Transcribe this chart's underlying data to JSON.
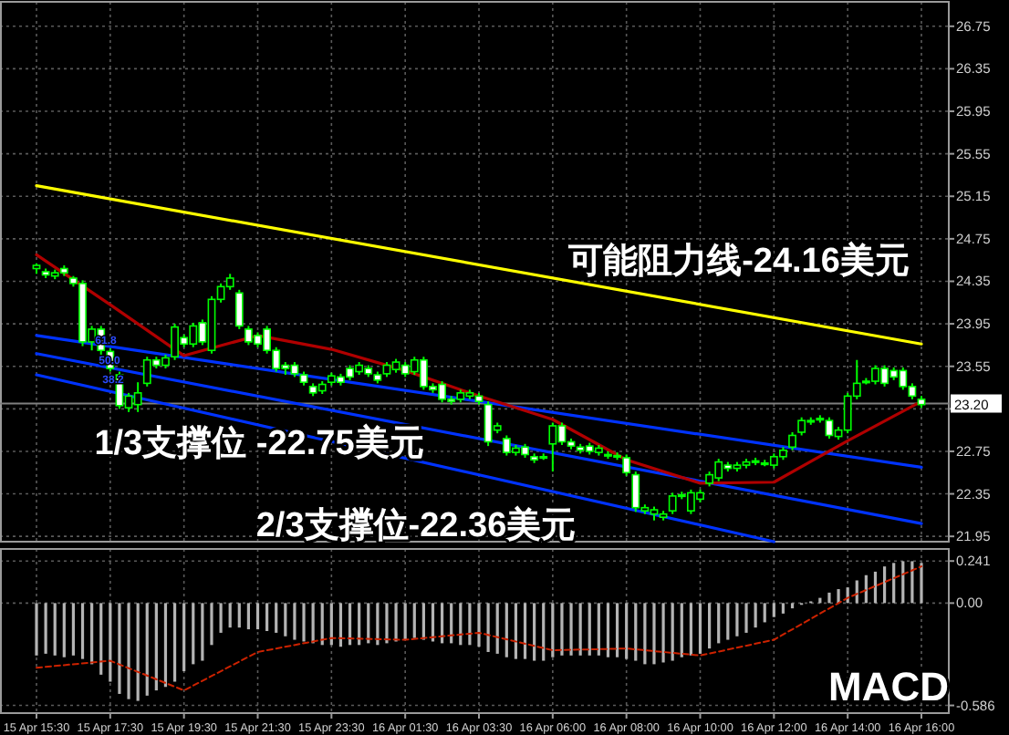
{
  "chart_data": [
    {
      "type": "candlestick",
      "tick_labels": "y",
      "grid": true,
      "categories": [
        "15 Apr 15:30",
        null,
        null,
        null,
        null,
        null,
        null,
        null,
        "15 Apr 17:30",
        null,
        null,
        null,
        null,
        null,
        null,
        null,
        "15 Apr 19:30",
        null,
        null,
        null,
        null,
        null,
        null,
        null,
        "15 Apr 21:30",
        null,
        null,
        null,
        null,
        null,
        null,
        null,
        "15 Apr 23:30",
        null,
        null,
        null,
        null,
        null,
        null,
        null,
        "16 Apr 01:30",
        null,
        null,
        null,
        null,
        null,
        null,
        null,
        "16 Apr 03:30",
        null,
        null,
        null,
        null,
        null,
        null,
        null,
        "16 Apr 06:00",
        null,
        null,
        null,
        null,
        null,
        null,
        null,
        "16 Apr 08:00",
        null,
        null,
        null,
        null,
        null,
        null,
        null,
        "16 Apr 10:00",
        null,
        null,
        null,
        null,
        null,
        null,
        null,
        "16 Apr 12:00",
        null,
        null,
        null,
        null,
        null,
        null,
        null,
        "16 Apr 14:00",
        null,
        null,
        null,
        null,
        null,
        null,
        null,
        "16 Apr 16:00"
      ],
      "ylim": [
        21.9,
        26.98
      ],
      "yticks": [
        21.95,
        22.35,
        22.75,
        {
          "value": 23.15,
          "label": null
        },
        23.55,
        23.95,
        24.35,
        24.75,
        25.15,
        25.55,
        25.95,
        26.35,
        26.75
      ],
      "series": [
        {
          "type": "line",
          "color": "#ffff00",
          "x": [
            "15 Apr 15:30",
            "16 Apr 16:00"
          ],
          "values": [
            25.25,
            23.76
          ]
        },
        {
          "type": "line",
          "color": "#0033ff",
          "x": [
            "15 Apr 15:30",
            "16 Apr 16:00"
          ],
          "values": [
            23.84,
            22.6
          ]
        },
        {
          "type": "line",
          "color": "#0033ff",
          "x": [
            "15 Apr 15:30",
            "16 Apr 16:00"
          ],
          "values": [
            23.67,
            22.07
          ]
        },
        {
          "type": "line",
          "color": "#0033ff",
          "x": [
            "15 Apr 15:30",
            "16 Apr 12:00"
          ],
          "values": [
            23.47,
            21.9
          ]
        },
        {
          "type": "line",
          "color": "#b00000",
          "x": [
            "15 Apr 15:30",
            "15 Apr 17:30",
            "15 Apr 19:30",
            "15 Apr 21:30",
            "15 Apr 23:30",
            "16 Apr 01:30",
            "16 Apr 03:30",
            "16 Apr 06:00",
            "16 Apr 08:00",
            "16 Apr 10:00",
            "16 Apr 12:00",
            "16 Apr 14:00",
            "16 Apr 16:00"
          ],
          "values": [
            24.6,
            24.13,
            23.65,
            23.84,
            23.71,
            23.51,
            23.27,
            23.05,
            22.67,
            22.45,
            22.46,
            22.85,
            23.22
          ]
        },
        {
          "color": "#00ff00",
          "ohlc": [
            [
              24.47,
              24.52,
              24.42,
              24.5
            ],
            [
              24.44,
              24.47,
              24.38,
              24.41
            ],
            [
              24.4,
              24.46,
              24.37,
              24.43
            ],
            [
              24.47,
              24.5,
              24.4,
              24.43
            ],
            [
              24.38,
              24.4,
              24.3,
              24.33
            ],
            [
              24.33,
              24.36,
              23.74,
              23.78
            ],
            [
              23.78,
              23.93,
              23.7,
              23.9
            ],
            [
              23.9,
              23.93,
              23.66,
              23.7
            ],
            [
              23.69,
              23.72,
              23.5,
              23.53
            ],
            [
              23.47,
              23.5,
              23.15,
              23.18
            ],
            [
              23.16,
              23.3,
              23.12,
              23.27
            ],
            [
              23.19,
              23.4,
              23.12,
              23.3
            ],
            [
              23.39,
              23.64,
              23.36,
              23.61
            ],
            [
              23.61,
              23.64,
              23.53,
              23.56
            ],
            [
              23.56,
              23.66,
              23.53,
              23.63
            ],
            [
              23.64,
              23.95,
              23.61,
              23.92
            ],
            [
              23.82,
              23.85,
              23.73,
              23.76
            ],
            [
              23.76,
              23.96,
              23.73,
              23.93
            ],
            [
              23.96,
              23.99,
              23.75,
              23.78
            ],
            [
              23.7,
              24.21,
              23.67,
              24.18
            ],
            [
              24.18,
              24.33,
              24.15,
              24.3
            ],
            [
              24.3,
              24.42,
              24.27,
              24.38
            ],
            [
              24.24,
              24.27,
              23.9,
              23.93
            ],
            [
              23.9,
              23.93,
              23.75,
              23.78
            ],
            [
              23.84,
              23.87,
              23.73,
              23.76
            ],
            [
              23.9,
              23.93,
              23.67,
              23.7
            ],
            [
              23.7,
              23.73,
              23.5,
              23.53
            ],
            [
              23.56,
              23.59,
              23.47,
              23.53
            ],
            [
              23.56,
              23.59,
              23.45,
              23.48
            ],
            [
              23.47,
              23.5,
              23.37,
              23.4
            ],
            [
              23.36,
              23.39,
              23.27,
              23.3
            ],
            [
              23.32,
              23.41,
              23.29,
              23.38
            ],
            [
              23.4,
              23.49,
              23.37,
              23.46
            ],
            [
              23.45,
              23.48,
              23.37,
              23.4
            ],
            [
              23.53,
              23.56,
              23.42,
              23.45
            ],
            [
              23.5,
              23.59,
              23.47,
              23.56
            ],
            [
              23.53,
              23.56,
              23.45,
              23.48
            ],
            [
              23.47,
              23.5,
              23.39,
              23.42
            ],
            [
              23.48,
              23.59,
              23.45,
              23.56
            ],
            [
              23.52,
              23.62,
              23.49,
              23.59
            ],
            [
              23.56,
              23.59,
              23.45,
              23.48
            ],
            [
              23.5,
              23.64,
              23.47,
              23.61
            ],
            [
              23.61,
              23.64,
              23.33,
              23.36
            ],
            [
              23.36,
              23.39,
              23.3,
              23.33
            ],
            [
              23.38,
              23.41,
              23.21,
              23.24
            ],
            [
              23.24,
              23.27,
              23.19,
              23.22
            ],
            [
              23.24,
              23.33,
              23.21,
              23.3
            ],
            [
              23.27,
              23.33,
              23.24,
              23.3
            ],
            [
              23.27,
              23.3,
              23.19,
              23.22
            ],
            [
              23.19,
              23.22,
              22.8,
              22.84
            ],
            [
              22.95,
              23.02,
              22.92,
              22.99
            ],
            [
              22.87,
              22.9,
              22.71,
              22.74
            ],
            [
              22.74,
              22.81,
              22.71,
              22.78
            ],
            [
              22.79,
              22.82,
              22.69,
              22.72
            ],
            [
              22.7,
              22.73,
              22.64,
              22.67
            ],
            [
              22.7,
              22.73,
              22.67,
              22.7
            ],
            [
              22.82,
              23.02,
              22.56,
              22.99
            ],
            [
              22.99,
              23.02,
              22.81,
              22.84
            ],
            [
              22.84,
              22.87,
              22.77,
              22.8
            ],
            [
              22.79,
              22.82,
              22.73,
              22.76
            ],
            [
              22.8,
              22.83,
              22.72,
              22.75
            ],
            [
              22.74,
              22.81,
              22.71,
              22.78
            ],
            [
              22.72,
              22.75,
              22.68,
              22.71
            ],
            [
              22.7,
              22.74,
              22.67,
              22.71
            ],
            [
              22.69,
              22.72,
              22.52,
              22.55
            ],
            [
              22.53,
              22.56,
              22.18,
              22.22
            ],
            [
              22.19,
              22.25,
              22.16,
              22.22
            ],
            [
              22.16,
              22.23,
              22.1,
              22.2
            ],
            [
              22.13,
              22.19,
              22.1,
              22.16
            ],
            [
              22.19,
              22.36,
              22.16,
              22.33
            ],
            [
              22.33,
              22.37,
              22.3,
              22.34
            ],
            [
              22.19,
              22.39,
              22.16,
              22.36
            ],
            [
              22.3,
              22.39,
              22.27,
              22.36
            ],
            [
              22.45,
              22.56,
              22.42,
              22.53
            ],
            [
              22.5,
              22.68,
              22.47,
              22.65
            ],
            [
              22.62,
              22.65,
              22.56,
              22.59
            ],
            [
              22.59,
              22.65,
              22.56,
              22.62
            ],
            [
              22.62,
              22.68,
              22.59,
              22.65
            ],
            [
              22.65,
              22.69,
              22.62,
              22.66
            ],
            [
              22.64,
              22.67,
              22.61,
              22.64
            ],
            [
              22.62,
              22.73,
              22.59,
              22.7
            ],
            [
              22.7,
              22.79,
              22.67,
              22.76
            ],
            [
              22.79,
              22.93,
              22.76,
              22.9
            ],
            [
              22.93,
              23.07,
              22.9,
              23.04
            ],
            [
              23.03,
              23.07,
              23.0,
              23.04
            ],
            [
              23.06,
              23.09,
              23.02,
              23.05
            ],
            [
              23.04,
              23.07,
              22.87,
              22.9
            ],
            [
              22.89,
              22.98,
              22.86,
              22.95
            ],
            [
              22.95,
              23.3,
              22.92,
              23.27
            ],
            [
              23.27,
              23.61,
              23.24,
              23.39
            ],
            [
              23.41,
              23.44,
              23.38,
              23.41
            ],
            [
              23.41,
              23.56,
              23.38,
              23.53
            ],
            [
              23.53,
              23.56,
              23.36,
              23.39
            ],
            [
              23.51,
              23.54,
              23.42,
              23.45
            ],
            [
              23.51,
              23.54,
              23.33,
              23.36
            ],
            [
              23.36,
              23.39,
              23.24,
              23.27
            ],
            [
              23.24,
              23.27,
              23.16,
              23.19
            ]
          ]
        }
      ],
      "ref_lines": [
        {
          "axis": "y",
          "value": 23.2,
          "label": "23.20",
          "color": "#808080"
        }
      ],
      "annotations": [
        "可能阻力线-24.16美元",
        "1/3支撑位 -22.75美元",
        "2/3支撑位-22.36美元",
        {
          "text": "61.8",
          "y": 23.8
        },
        {
          "text": "50.0",
          "y": 23.61
        },
        {
          "text": "38.2",
          "y": 23.43
        }
      ]
    },
    {
      "type": "bar",
      "grid": true,
      "categories": [
        "15 Apr 15:30",
        null,
        null,
        null,
        null,
        null,
        null,
        null,
        "15 Apr 17:30",
        null,
        null,
        null,
        null,
        null,
        null,
        null,
        "15 Apr 19:30",
        null,
        null,
        null,
        null,
        null,
        null,
        null,
        "15 Apr 21:30",
        null,
        null,
        null,
        null,
        null,
        null,
        null,
        "15 Apr 23:30",
        null,
        null,
        null,
        null,
        null,
        null,
        null,
        "16 Apr 01:30",
        null,
        null,
        null,
        null,
        null,
        null,
        null,
        "16 Apr 03:30",
        null,
        null,
        null,
        null,
        null,
        null,
        null,
        "16 Apr 06:00",
        null,
        null,
        null,
        null,
        null,
        null,
        null,
        "16 Apr 08:00",
        null,
        null,
        null,
        null,
        null,
        null,
        null,
        "16 Apr 10:00",
        null,
        null,
        null,
        null,
        null,
        null,
        null,
        "16 Apr 12:00",
        null,
        null,
        null,
        null,
        null,
        null,
        null,
        "16 Apr 14:00",
        null,
        null,
        null,
        null,
        null,
        null,
        null,
        "16 Apr 16:00"
      ],
      "ylim": [
        -0.63,
        0.31
      ],
      "yticks": [
        -0.586,
        {
          "value": 0,
          "label": "0.00"
        },
        0.241
      ],
      "series": [
        {
          "color": "#b4b4b4",
          "values": [
            -0.3,
            -0.29,
            -0.3,
            -0.31,
            -0.3,
            -0.32,
            -0.35,
            -0.41,
            -0.45,
            -0.52,
            -0.55,
            -0.56,
            -0.53,
            -0.5,
            -0.48,
            -0.45,
            -0.39,
            -0.35,
            -0.33,
            -0.24,
            -0.17,
            -0.14,
            -0.14,
            -0.15,
            -0.15,
            -0.16,
            -0.17,
            -0.19,
            -0.21,
            -0.22,
            -0.23,
            -0.24,
            -0.24,
            -0.25,
            -0.24,
            -0.24,
            -0.23,
            -0.24,
            -0.23,
            -0.22,
            -0.21,
            -0.2,
            -0.21,
            -0.22,
            -0.23,
            -0.23,
            -0.24,
            -0.24,
            -0.25,
            -0.28,
            -0.29,
            -0.31,
            -0.32,
            -0.32,
            -0.33,
            -0.33,
            -0.31,
            -0.3,
            -0.3,
            -0.3,
            -0.3,
            -0.3,
            -0.31,
            -0.31,
            -0.32,
            -0.33,
            -0.35,
            -0.35,
            -0.34,
            -0.33,
            -0.31,
            -0.3,
            -0.29,
            -0.26,
            -0.23,
            -0.21,
            -0.19,
            -0.17,
            -0.14,
            -0.11,
            -0.08,
            -0.06,
            -0.03,
            -0.01,
            0.01,
            0.03,
            0.06,
            0.08,
            0.09,
            0.13,
            0.16,
            0.18,
            0.21,
            0.23,
            0.24,
            0.24,
            0.23
          ]
        },
        {
          "type": "line",
          "color": "#cc2200",
          "line_style": "dashed",
          "x": [
            "15 Apr 15:30",
            "15 Apr 17:30",
            "15 Apr 19:30",
            "15 Apr 21:30",
            "15 Apr 23:30",
            "16 Apr 01:30",
            "16 Apr 03:30",
            "16 Apr 06:00",
            "16 Apr 08:00",
            "16 Apr 10:00",
            "16 Apr 12:00",
            "16 Apr 14:00",
            "16 Apr 16:00"
          ],
          "values": [
            -0.37,
            -0.33,
            -0.5,
            -0.28,
            -0.2,
            -0.21,
            -0.17,
            -0.27,
            -0.26,
            -0.3,
            -0.21,
            0.03,
            0.21
          ]
        }
      ],
      "annotations": [
        "MACD"
      ]
    }
  ]
}
